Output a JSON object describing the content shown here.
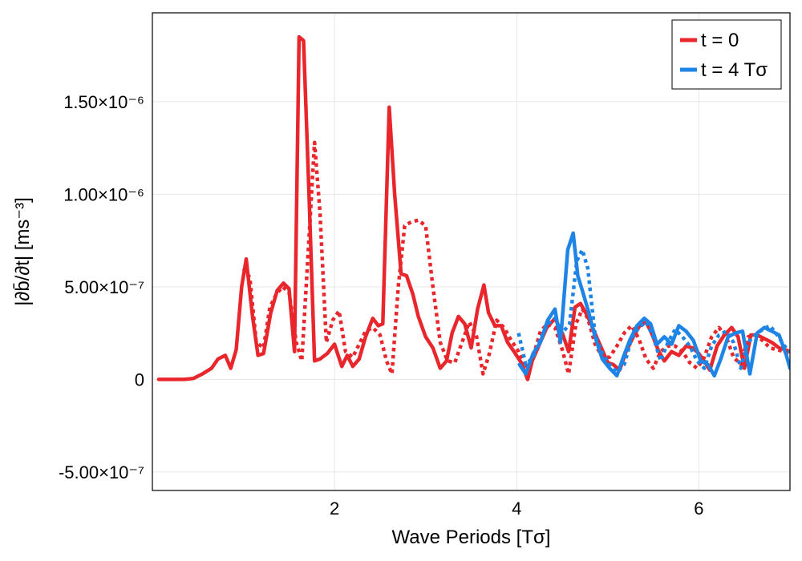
{
  "chart_data": {
    "type": "line",
    "xlabel": "Wave Periods [Tσ]",
    "ylabel": "|∂b̄/∂t| [ms⁻³]",
    "xlim": [
      0.0,
      7.0
    ],
    "ylim": [
      -6e-07,
      1.98e-06
    ],
    "xticks": [
      2,
      4,
      6
    ],
    "xtick_labels": [
      "2",
      "4",
      "6"
    ],
    "yticks": [
      -5e-07,
      0,
      5e-07,
      1e-06,
      1.5e-06
    ],
    "ytick_labels": [
      "-5.00×10⁻⁷",
      "0",
      "5.00×10⁻⁷",
      "1.00×10⁻⁶",
      "1.50×10⁻⁶"
    ],
    "grid": true,
    "legend": {
      "placement": "top-right",
      "entries": [
        {
          "label": "t = 0",
          "color": "#e8262b"
        },
        {
          "label": "t = 4 Tσ",
          "color": "#1e84e6"
        }
      ]
    },
    "series": [
      {
        "legend_index": 0,
        "color": "#e8262b",
        "dash": false,
        "x": [
          0.07,
          0.15,
          0.25,
          0.35,
          0.45,
          0.55,
          0.65,
          0.72,
          0.8,
          0.86,
          0.92,
          0.98,
          1.03,
          1.1,
          1.16,
          1.22,
          1.3,
          1.37,
          1.44,
          1.5,
          1.56,
          1.61,
          1.66,
          1.72,
          1.78,
          1.84,
          1.92,
          2.0,
          2.08,
          2.14,
          2.2,
          2.27,
          2.34,
          2.42,
          2.48,
          2.53,
          2.6,
          2.66,
          2.73,
          2.79,
          2.86,
          2.92,
          3.0,
          3.08,
          3.16,
          3.23,
          3.29,
          3.36,
          3.43,
          3.5,
          3.57,
          3.64,
          3.69,
          3.76,
          3.83,
          3.9,
          3.97,
          4.05,
          4.12,
          4.17,
          4.25,
          4.33,
          4.42,
          4.5,
          4.57,
          4.64,
          4.7,
          4.78,
          4.85,
          4.92,
          5.0,
          5.06,
          5.13,
          5.2,
          5.28,
          5.35,
          5.42,
          5.48,
          5.56,
          5.62,
          5.7,
          5.78,
          5.86,
          5.93,
          6.0,
          6.07,
          6.12,
          6.2,
          6.28,
          6.36,
          6.43,
          6.5,
          6.57,
          6.64,
          6.72,
          6.8,
          6.88,
          6.95,
          7.0
        ],
        "y": [
          0,
          0,
          0,
          0,
          5e-09,
          3e-08,
          6e-08,
          1.1e-07,
          1.3e-07,
          6e-08,
          1.6e-07,
          5e-07,
          6.5e-07,
          3.4e-07,
          1.3e-07,
          1.4e-07,
          3.6e-07,
          4.8e-07,
          5.2e-07,
          4.9e-07,
          1.5e-07,
          1.85e-06,
          1.83e-06,
          1e-06,
          1e-07,
          1.1e-07,
          1.4e-07,
          1.9e-07,
          7e-08,
          1.3e-07,
          7e-08,
          1.1e-07,
          2.3e-07,
          3.3e-07,
          2.9e-07,
          3e-07,
          1.47e-06,
          1e-06,
          5.7e-07,
          5.6e-07,
          4.6e-07,
          3.4e-07,
          2.3e-07,
          1.7e-07,
          6e-08,
          1e-07,
          2.5e-07,
          3.4e-07,
          3e-07,
          1.7e-07,
          3.8e-07,
          5.1e-07,
          3.6e-07,
          2.9e-07,
          2.9e-07,
          2e-07,
          1.5e-07,
          9e-08,
          0,
          1e-07,
          1.9e-07,
          2.8e-07,
          3.3e-07,
          2.5e-07,
          1.5e-07,
          3.9e-07,
          4.1e-07,
          3.4e-07,
          2.6e-07,
          1.8e-07,
          9e-08,
          8e-08,
          5e-08,
          1.5e-07,
          2.3e-07,
          2.9e-07,
          3.1e-07,
          2.5e-07,
          1.5e-07,
          1e-07,
          1.5e-07,
          1.3e-07,
          1.8e-07,
          1.7e-07,
          1.4e-07,
          9e-08,
          5e-08,
          1.8e-07,
          2.4e-07,
          2.8e-07,
          2.3e-07,
          6e-08,
          2.4e-07,
          2.4e-07,
          2.2e-07,
          2e-07,
          1.7e-07,
          1.6e-07,
          1.5e-07
        ]
      },
      {
        "legend_index": 0,
        "color": "#e8262b",
        "dash": true,
        "x": [
          1.0,
          1.07,
          1.14,
          1.22,
          1.29,
          1.36,
          1.43,
          1.5,
          1.58,
          1.64,
          1.7,
          1.78,
          1.84,
          1.91,
          1.98,
          2.05,
          2.12,
          2.2,
          2.27,
          2.34,
          2.42,
          2.5,
          2.57,
          2.63,
          2.7,
          2.77,
          2.84,
          2.92,
          3.0,
          3.08,
          3.16,
          3.24,
          3.32,
          3.4,
          3.48,
          3.56,
          3.63,
          3.7,
          3.78,
          3.86,
          3.94,
          4.02,
          4.1,
          4.18,
          4.26,
          4.34,
          4.42,
          4.5,
          4.57,
          4.65,
          4.72,
          4.78,
          4.86,
          4.94,
          5.02,
          5.1,
          5.18,
          5.26,
          5.34,
          5.42,
          5.5,
          5.58,
          5.66,
          5.74,
          5.82,
          5.9,
          5.98,
          6.06,
          6.14,
          6.22,
          6.3,
          6.38,
          6.46,
          6.54,
          6.62,
          6.7,
          6.78,
          6.86,
          6.94,
          7.0
        ],
        "y": [
          6e-07,
          5.5e-07,
          2e-07,
          1.7e-07,
          3.9e-07,
          4.6e-07,
          5e-07,
          4.7e-07,
          2e-07,
          1e-07,
          6e-07,
          1.28e-06,
          9e-07,
          2e-07,
          3.2e-07,
          3.7e-07,
          1.5e-07,
          1.2e-07,
          1.9e-07,
          2.6e-07,
          2.8e-07,
          2.4e-07,
          1e-07,
          3e-08,
          5e-07,
          8.3e-07,
          8.5e-07,
          8.6e-07,
          8.3e-07,
          5e-07,
          2e-07,
          1e-07,
          9e-08,
          2e-07,
          3.1e-07,
          2.3e-07,
          3e-08,
          1.4e-07,
          3.2e-07,
          2.8e-07,
          2.1e-07,
          1.5e-07,
          6e-08,
          1.2e-07,
          2.6e-07,
          3e-07,
          2.8e-07,
          1.6e-07,
          3e-08,
          3e-07,
          3.8e-07,
          3.3e-07,
          1.9e-07,
          1.2e-07,
          1.2e-07,
          1.8e-07,
          2.5e-07,
          2.9e-07,
          2.2e-07,
          1.1e-07,
          6e-08,
          1.5e-07,
          1.8e-07,
          1.8e-07,
          1.5e-07,
          9e-08,
          6e-08,
          1.2e-07,
          2.3e-07,
          2.8e-07,
          2.3e-07,
          1.2e-07,
          8e-08,
          2.3e-07,
          2.4e-07,
          2.1e-07,
          1.7e-07,
          1.6e-07,
          1.5e-07,
          1.4e-07
        ]
      },
      {
        "legend_index": 1,
        "color": "#1e84e6",
        "dash": false,
        "x": [
          4.03,
          4.1,
          4.18,
          4.26,
          4.34,
          4.42,
          4.48,
          4.56,
          4.62,
          4.67,
          4.72,
          4.78,
          4.86,
          4.94,
          5.02,
          5.1,
          5.17,
          5.24,
          5.32,
          5.4,
          5.47,
          5.54,
          5.62,
          5.7,
          5.78,
          5.86,
          5.94,
          6.02,
          6.1,
          6.17,
          6.24,
          6.32,
          6.4,
          6.48,
          6.56,
          6.64,
          6.72,
          6.8,
          6.88,
          6.96,
          7.0
        ],
        "y": [
          8e-08,
          3e-08,
          1.4e-07,
          2e-07,
          3.2e-07,
          3.8e-07,
          2e-07,
          7e-07,
          7.9e-07,
          5.6e-07,
          4.8e-07,
          3.8e-07,
          2.3e-07,
          1.1e-07,
          6e-08,
          2e-08,
          1.2e-07,
          2.1e-07,
          2.9e-07,
          3.3e-07,
          3e-07,
          1.9e-07,
          2.3e-07,
          1.9e-07,
          2.9e-07,
          2.6e-07,
          2.1e-07,
          1e-07,
          8e-08,
          2e-08,
          1.1e-07,
          2.3e-07,
          2.5e-07,
          2.6e-07,
          3e-08,
          2.5e-07,
          2.8e-07,
          2.6e-07,
          2.4e-07,
          1.3e-07,
          6e-08
        ]
      },
      {
        "legend_index": 1,
        "color": "#1e84e6",
        "dash": true,
        "x": [
          4.02,
          4.1,
          4.18,
          4.26,
          4.34,
          4.42,
          4.5,
          4.58,
          4.66,
          4.72,
          4.78,
          4.86,
          4.94,
          5.02,
          5.1,
          5.18,
          5.26,
          5.34,
          5.42,
          5.5,
          5.58,
          5.66,
          5.74,
          5.82,
          5.9,
          5.98,
          6.06,
          6.14,
          6.22,
          6.3,
          6.38,
          6.46,
          6.54,
          6.62,
          6.7,
          6.78,
          6.86,
          6.94,
          7.0
        ],
        "y": [
          2.5e-07,
          8e-08,
          1.2e-07,
          2.2e-07,
          3e-07,
          3.3e-07,
          2.5e-07,
          3e-07,
          6.4e-07,
          7e-07,
          6e-07,
          2.4e-07,
          1.4e-07,
          8e-08,
          4e-08,
          8e-08,
          2.2e-07,
          2.8e-07,
          3.1e-07,
          2.3e-07,
          1e-07,
          2e-07,
          2.7e-07,
          2.3e-07,
          1.8e-07,
          1e-07,
          6e-08,
          1.8e-07,
          2.4e-07,
          2.6e-07,
          2e-07,
          6e-08,
          2e-07,
          2.4e-07,
          2.7e-07,
          2.9e-07,
          2.4e-07,
          1.8e-07,
          1.5e-07
        ]
      }
    ]
  }
}
